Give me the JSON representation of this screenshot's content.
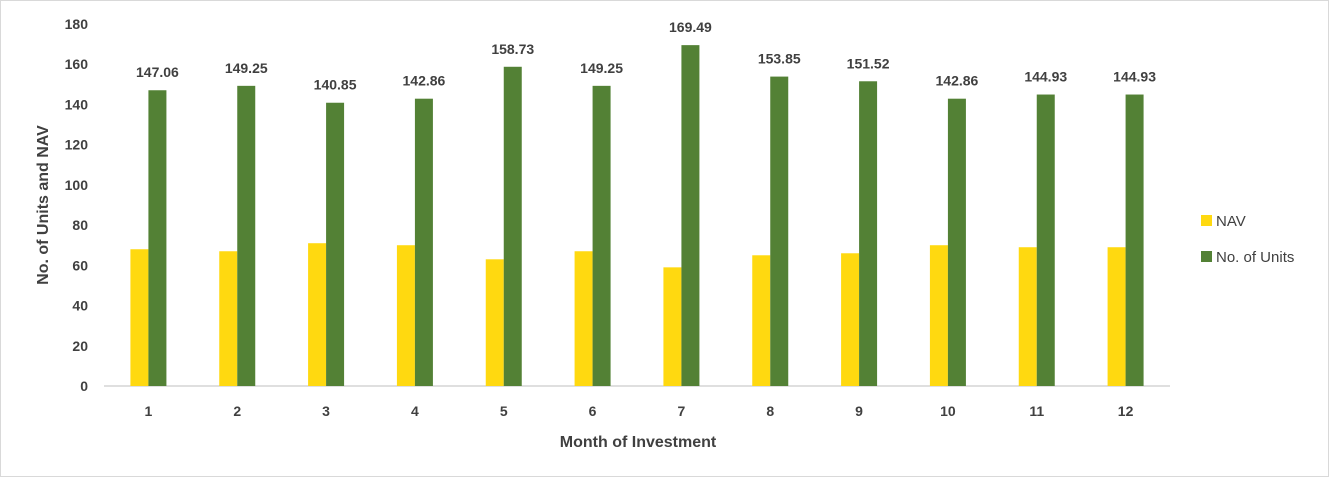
{
  "chart_data": {
    "type": "bar",
    "title": "",
    "xlabel": "Month of Investment",
    "ylabel": "No. of Units and  NAV",
    "ylim": [
      0,
      180
    ],
    "ytick_step": 20,
    "grid": false,
    "legend_position": "right",
    "categories": [
      "1",
      "2",
      "3",
      "4",
      "5",
      "6",
      "7",
      "8",
      "9",
      "10",
      "11",
      "12"
    ],
    "series": [
      {
        "name": "NAV",
        "color": "#FFD910",
        "values": [
          68,
          67,
          71,
          70,
          63,
          67,
          59,
          65,
          66,
          70,
          69,
          69
        ],
        "show_labels": false
      },
      {
        "name": "No. of Units",
        "color": "#538135",
        "values": [
          147.06,
          149.25,
          140.85,
          142.86,
          158.73,
          149.25,
          169.49,
          153.85,
          151.52,
          142.86,
          144.93,
          144.93
        ],
        "data_labels": [
          "147.06",
          "149.25",
          "140.85",
          "142.86",
          "158.73",
          "149.25",
          "169.49",
          "153.85",
          "151.52",
          "142.86",
          "144.93",
          "144.93"
        ],
        "show_labels": true
      }
    ]
  }
}
